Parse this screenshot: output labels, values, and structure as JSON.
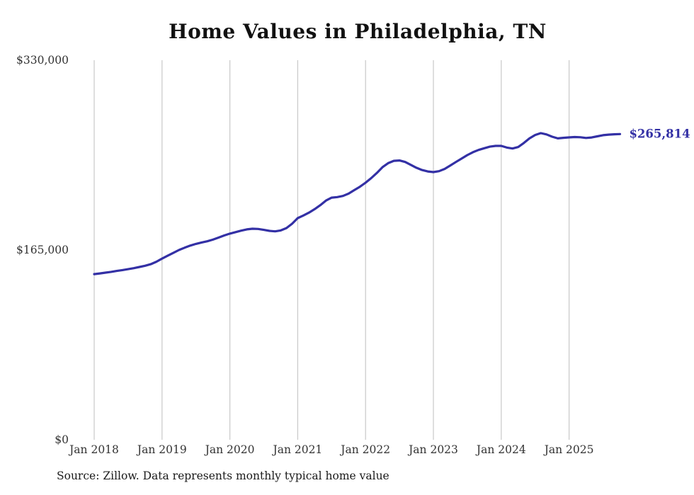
{
  "chart_data": {
    "type": "line",
    "title": "Home Values in Philadelphia, TN",
    "source_note": "Source: Zillow. Data represents monthly typical home value",
    "end_label": "$265,814",
    "line_color": "#3330a5",
    "grid_color": "#cccccc",
    "axis_text_color": "#333333",
    "ylim": [
      0,
      330000
    ],
    "y_ticks": [
      {
        "value": 0,
        "label": "$0"
      },
      {
        "value": 165000,
        "label": "$165,000"
      },
      {
        "value": 330000,
        "label": "$330,000"
      }
    ],
    "x_ticks": [
      "Jan 2018",
      "Jan 2019",
      "Jan 2020",
      "Jan 2021",
      "Jan 2022",
      "Jan 2023",
      "Jan 2024",
      "Jan 2025"
    ],
    "x_start_month": "2018-01",
    "x_end_month": "2025-10",
    "values": [
      144000,
      144600,
      145300,
      146000,
      146800,
      147500,
      148300,
      149200,
      150200,
      151300,
      152600,
      154800,
      157500,
      160000,
      162500,
      165000,
      167000,
      168800,
      170300,
      171500,
      172600,
      174000,
      175800,
      177600,
      179200,
      180500,
      181800,
      182900,
      183500,
      183300,
      182500,
      181600,
      181200,
      182000,
      184000,
      187800,
      192700,
      195000,
      197500,
      200500,
      204000,
      208000,
      210500,
      211000,
      212000,
      214000,
      217000,
      220000,
      223500,
      227500,
      232000,
      237000,
      240500,
      242500,
      242800,
      241500,
      239000,
      236500,
      234500,
      233300,
      232700,
      233500,
      235500,
      238500,
      241500,
      244500,
      247500,
      250000,
      252000,
      253500,
      254800,
      255500,
      255500,
      254000,
      253200,
      254500,
      258000,
      262000,
      265000,
      266600,
      265500,
      263500,
      262000,
      262500,
      262900,
      263200,
      263000,
      262400,
      262800,
      263800,
      264800,
      265300,
      265600,
      265814
    ]
  }
}
